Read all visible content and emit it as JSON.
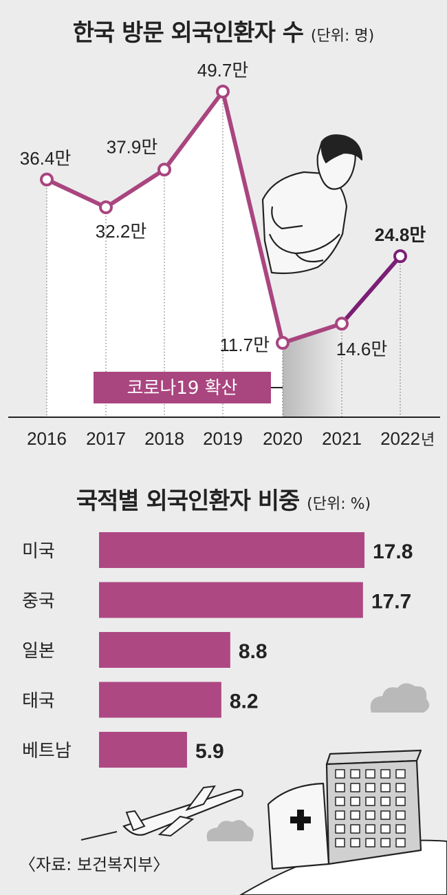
{
  "chart_data": [
    {
      "type": "line",
      "title": "한국 방문 외국인환자 수",
      "unit": "(단위: 명)",
      "x": [
        "2016",
        "2017",
        "2018",
        "2019",
        "2020",
        "2021",
        "2022"
      ],
      "year_suffix": "년",
      "values": [
        36.4,
        32.2,
        37.9,
        49.7,
        11.7,
        14.6,
        24.8
      ],
      "value_labels": [
        "36.4만",
        "32.2만",
        "37.9만",
        "49.7만",
        "11.7만",
        "14.6만",
        "24.8만"
      ],
      "annotation": "코로나19 확산",
      "colors": {
        "line": "#a9457f",
        "line_recent": "#7b1f74",
        "annotation_bg": "#a9457f",
        "covid_band": "#c4c4c4"
      }
    },
    {
      "type": "bar",
      "title": "국적별 외국인환자 비중",
      "unit": "(단위: %)",
      "categories": [
        "미국",
        "중국",
        "일본",
        "태국",
        "베트남"
      ],
      "values": [
        17.8,
        17.7,
        8.8,
        8.2,
        5.9
      ],
      "value_labels": [
        "17.8",
        "17.7",
        "8.8",
        "8.2",
        "5.9"
      ],
      "colors": {
        "bar": "#ad4883"
      }
    }
  ],
  "source": "〈자료: 보건복지부〉",
  "icons": [
    "sick-man-icon",
    "airplane-icon",
    "hospital-icon",
    "cloud-icon"
  ]
}
